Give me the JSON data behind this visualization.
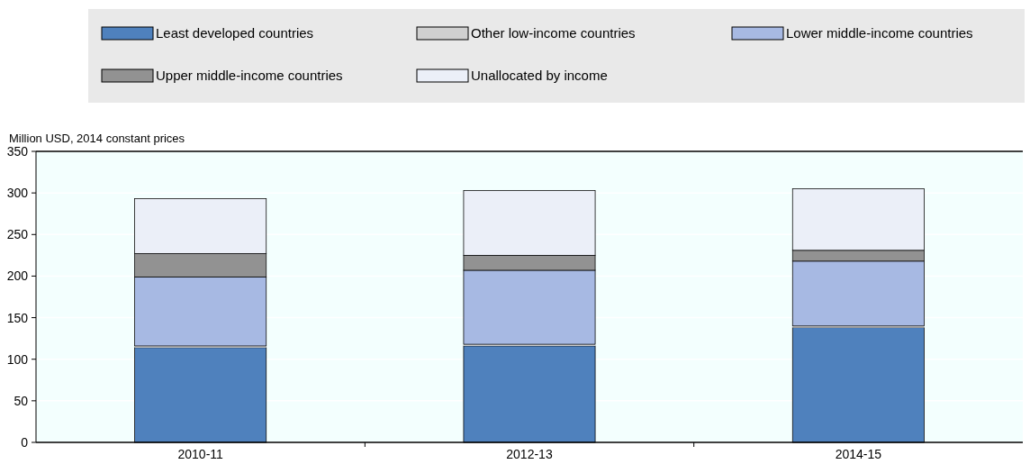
{
  "chart_data": {
    "type": "bar",
    "stacked": true,
    "ylabel": "Million USD, 2014 constant prices",
    "categories": [
      "2010-11",
      "2012-13",
      "2014-15"
    ],
    "series": [
      {
        "name": "Least developed countries",
        "color": "#4f81bd",
        "values": [
          114,
          116,
          138
        ]
      },
      {
        "name": "Other low-income countries",
        "color": "#d0d0d0",
        "values": [
          2,
          2,
          2
        ]
      },
      {
        "name": "Lower middle-income countries",
        "color": "#a7b9e3",
        "values": [
          83,
          89,
          78
        ]
      },
      {
        "name": "Upper middle-income countries",
        "color": "#929292",
        "values": [
          28,
          18,
          13
        ]
      },
      {
        "name": "Unallocated by income",
        "color": "#ebeff8",
        "values": [
          66,
          78,
          74
        ]
      }
    ],
    "ylim": [
      0,
      350
    ],
    "yticks": [
      0,
      50,
      100,
      150,
      200,
      250,
      300,
      350
    ],
    "grid": "y",
    "legend": "top"
  }
}
